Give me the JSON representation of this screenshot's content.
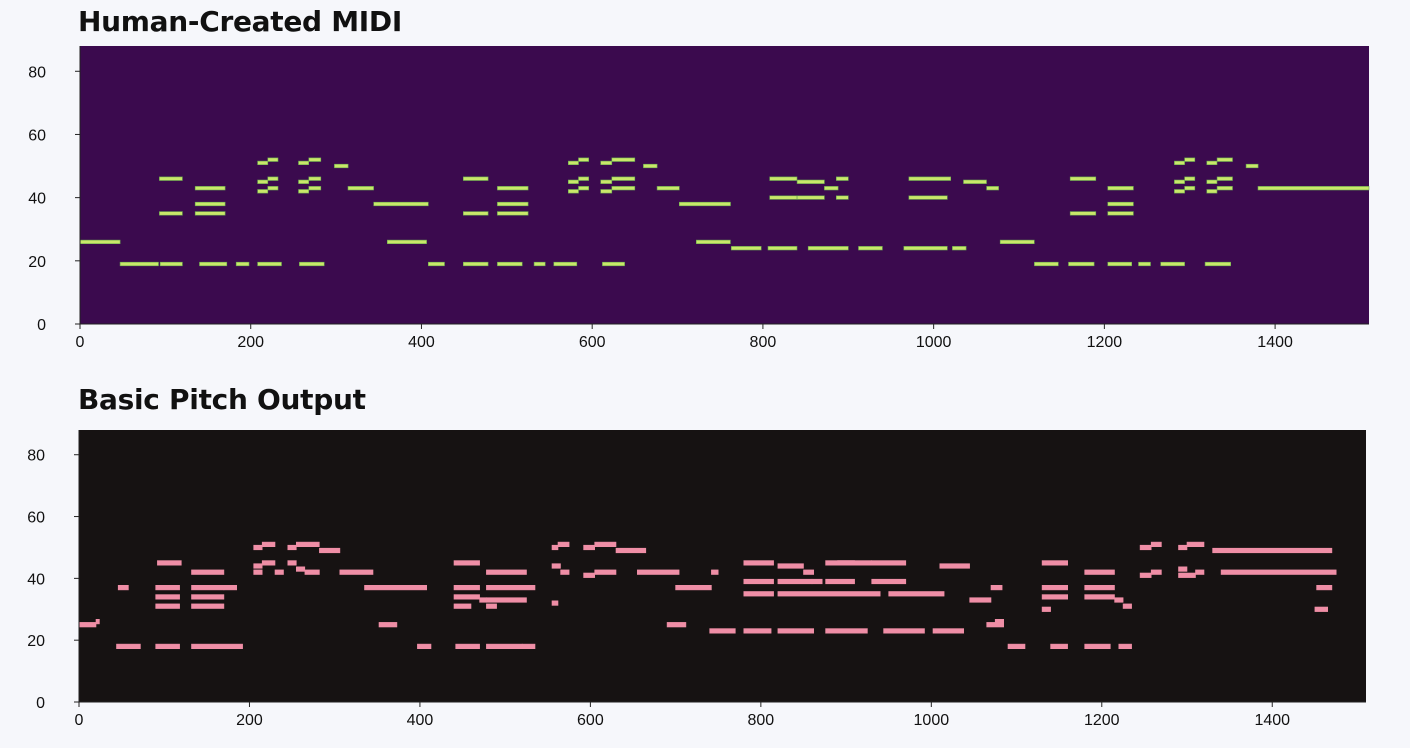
{
  "charts": [
    {
      "title": "Human-Created MIDI",
      "background": "#3b0a4e",
      "note_color": "#c9e86a",
      "note_edge": "#6aa84f"
    },
    {
      "title": "Basic Pitch Output",
      "background": "#161212",
      "note_color": "#ef8ea6",
      "note_edge": "#ef8ea6"
    }
  ],
  "chart_data": [
    {
      "type": "piano-roll",
      "title": "Human-Created MIDI",
      "xlim": [
        0,
        1510
      ],
      "ylim": [
        0,
        88
      ],
      "xticks": [
        0,
        200,
        400,
        600,
        800,
        1000,
        1200,
        1400
      ],
      "yticks": [
        0,
        20,
        40,
        60,
        80
      ],
      "grid": false,
      "notes": [
        [
          0,
          47,
          26
        ],
        [
          47,
          92,
          19
        ],
        [
          94,
          120,
          19
        ],
        [
          140,
          172,
          19
        ],
        [
          183,
          198,
          19
        ],
        [
          208,
          236,
          19
        ],
        [
          257,
          286,
          19
        ],
        [
          93,
          120,
          46
        ],
        [
          93,
          120,
          35
        ],
        [
          135,
          170,
          43
        ],
        [
          135,
          170,
          38
        ],
        [
          135,
          170,
          35
        ],
        [
          208,
          220,
          51
        ],
        [
          220,
          232,
          52
        ],
        [
          208,
          220,
          45
        ],
        [
          220,
          232,
          46
        ],
        [
          208,
          220,
          42
        ],
        [
          220,
          232,
          43
        ],
        [
          256,
          268,
          51
        ],
        [
          268,
          282,
          52
        ],
        [
          256,
          268,
          45
        ],
        [
          268,
          282,
          46
        ],
        [
          256,
          268,
          42
        ],
        [
          268,
          282,
          43
        ],
        [
          298,
          314,
          50
        ],
        [
          314,
          344,
          43
        ],
        [
          344,
          408,
          38
        ],
        [
          360,
          406,
          26
        ],
        [
          408,
          427,
          19
        ],
        [
          449,
          478,
          46
        ],
        [
          449,
          478,
          35
        ],
        [
          449,
          478,
          19
        ],
        [
          489,
          518,
          19
        ],
        [
          489,
          525,
          43
        ],
        [
          489,
          525,
          38
        ],
        [
          489,
          525,
          35
        ],
        [
          532,
          545,
          19
        ],
        [
          555,
          582,
          19
        ],
        [
          572,
          584,
          51
        ],
        [
          584,
          596,
          52
        ],
        [
          572,
          584,
          45
        ],
        [
          584,
          596,
          46
        ],
        [
          572,
          584,
          42
        ],
        [
          584,
          596,
          43
        ],
        [
          612,
          638,
          19
        ],
        [
          610,
          623,
          51
        ],
        [
          623,
          650,
          52
        ],
        [
          610,
          623,
          45
        ],
        [
          623,
          650,
          46
        ],
        [
          610,
          623,
          42
        ],
        [
          623,
          650,
          43
        ],
        [
          660,
          676,
          50
        ],
        [
          676,
          702,
          43
        ],
        [
          702,
          762,
          38
        ],
        [
          722,
          762,
          26
        ],
        [
          763,
          798,
          24
        ],
        [
          806,
          840,
          24
        ],
        [
          853,
          900,
          24
        ],
        [
          912,
          940,
          24
        ],
        [
          808,
          840,
          46
        ],
        [
          808,
          840,
          40
        ],
        [
          840,
          872,
          45
        ],
        [
          840,
          872,
          40
        ],
        [
          872,
          888,
          43
        ],
        [
          886,
          900,
          46
        ],
        [
          886,
          900,
          40
        ],
        [
          971,
          1020,
          46
        ],
        [
          971,
          1016,
          40
        ],
        [
          965,
          1016,
          24
        ],
        [
          1022,
          1038,
          24
        ],
        [
          1035,
          1062,
          45
        ],
        [
          1062,
          1076,
          43
        ],
        [
          1078,
          1118,
          26
        ],
        [
          1118,
          1146,
          19
        ],
        [
          1158,
          1188,
          19
        ],
        [
          1204,
          1232,
          19
        ],
        [
          1240,
          1254,
          19
        ],
        [
          1266,
          1294,
          19
        ],
        [
          1318,
          1348,
          19
        ],
        [
          1160,
          1190,
          46
        ],
        [
          1160,
          1190,
          35
        ],
        [
          1204,
          1234,
          43
        ],
        [
          1204,
          1234,
          38
        ],
        [
          1204,
          1234,
          35
        ],
        [
          1282,
          1294,
          51
        ],
        [
          1294,
          1306,
          52
        ],
        [
          1282,
          1294,
          45
        ],
        [
          1294,
          1306,
          46
        ],
        [
          1282,
          1294,
          42
        ],
        [
          1294,
          1306,
          43
        ],
        [
          1320,
          1332,
          51
        ],
        [
          1332,
          1350,
          52
        ],
        [
          1320,
          1332,
          45
        ],
        [
          1332,
          1350,
          46
        ],
        [
          1320,
          1332,
          42
        ],
        [
          1332,
          1350,
          43
        ],
        [
          1366,
          1380,
          50
        ],
        [
          1380,
          1510,
          43
        ]
      ]
    },
    {
      "type": "piano-roll",
      "title": "Basic Pitch Output",
      "xlim": [
        0,
        1510
      ],
      "ylim": [
        0,
        88
      ],
      "xticks": [
        0,
        200,
        400,
        600,
        800,
        1000,
        1200,
        1400
      ],
      "yticks": [
        0,
        20,
        40,
        60,
        80
      ],
      "grid": false,
      "notes": [
        [
          0,
          20,
          25
        ],
        [
          20,
          24,
          26
        ],
        [
          44,
          72,
          18
        ],
        [
          46,
          58,
          37
        ],
        [
          90,
          118,
          18
        ],
        [
          92,
          120,
          45
        ],
        [
          90,
          118,
          37
        ],
        [
          90,
          118,
          34
        ],
        [
          90,
          118,
          31
        ],
        [
          132,
          192,
          18
        ],
        [
          132,
          170,
          42
        ],
        [
          132,
          170,
          37
        ],
        [
          132,
          170,
          34
        ],
        [
          132,
          170,
          31
        ],
        [
          170,
          185,
          37
        ],
        [
          205,
          215,
          50
        ],
        [
          215,
          230,
          51
        ],
        [
          205,
          215,
          44
        ],
        [
          205,
          215,
          42
        ],
        [
          215,
          230,
          45
        ],
        [
          230,
          240,
          42
        ],
        [
          245,
          255,
          50
        ],
        [
          255,
          282,
          51
        ],
        [
          245,
          255,
          45
        ],
        [
          255,
          265,
          43
        ],
        [
          265,
          282,
          42
        ],
        [
          282,
          306,
          49
        ],
        [
          306,
          345,
          42
        ],
        [
          335,
          408,
          37
        ],
        [
          352,
          373,
          25
        ],
        [
          397,
          413,
          18
        ],
        [
          440,
          470,
          45
        ],
        [
          440,
          470,
          37
        ],
        [
          440,
          470,
          34
        ],
        [
          440,
          460,
          31
        ],
        [
          470,
          478,
          33
        ],
        [
          478,
          490,
          31
        ],
        [
          442,
          470,
          18
        ],
        [
          478,
          535,
          37
        ],
        [
          478,
          525,
          42
        ],
        [
          478,
          525,
          33
        ],
        [
          478,
          520,
          18
        ],
        [
          520,
          535,
          18
        ],
        [
          555,
          562,
          50
        ],
        [
          562,
          575,
          51
        ],
        [
          555,
          565,
          44
        ],
        [
          565,
          575,
          42
        ],
        [
          555,
          562,
          32
        ],
        [
          592,
          605,
          50
        ],
        [
          605,
          630,
          51
        ],
        [
          592,
          605,
          41
        ],
        [
          605,
          630,
          42
        ],
        [
          630,
          665,
          49
        ],
        [
          655,
          704,
          42
        ],
        [
          690,
          712,
          25
        ],
        [
          700,
          742,
          37
        ],
        [
          742,
          750,
          42
        ],
        [
          740,
          770,
          23
        ],
        [
          780,
          812,
          23
        ],
        [
          820,
          862,
          23
        ],
        [
          876,
          925,
          23
        ],
        [
          944,
          992,
          23
        ],
        [
          1002,
          1038,
          23
        ],
        [
          780,
          815,
          45
        ],
        [
          780,
          815,
          39
        ],
        [
          780,
          815,
          35
        ],
        [
          820,
          850,
          44
        ],
        [
          850,
          862,
          42
        ],
        [
          820,
          860,
          39
        ],
        [
          860,
          872,
          39
        ],
        [
          820,
          940,
          35
        ],
        [
          876,
          910,
          45
        ],
        [
          876,
          910,
          39
        ],
        [
          890,
          930,
          45
        ],
        [
          930,
          970,
          45
        ],
        [
          930,
          970,
          39
        ],
        [
          950,
          1015,
          35
        ],
        [
          1010,
          1045,
          44
        ],
        [
          1045,
          1070,
          33
        ],
        [
          1070,
          1083,
          37
        ],
        [
          1065,
          1085,
          25
        ],
        [
          1075,
          1085,
          26
        ],
        [
          1090,
          1110,
          18
        ],
        [
          1130,
          1160,
          45
        ],
        [
          1130,
          1160,
          37
        ],
        [
          1130,
          1160,
          34
        ],
        [
          1130,
          1140,
          30
        ],
        [
          1140,
          1160,
          18
        ],
        [
          1180,
          1210,
          18
        ],
        [
          1220,
          1235,
          18
        ],
        [
          1180,
          1215,
          42
        ],
        [
          1180,
          1215,
          37
        ],
        [
          1180,
          1215,
          34
        ],
        [
          1215,
          1225,
          33
        ],
        [
          1225,
          1235,
          31
        ],
        [
          1245,
          1258,
          50
        ],
        [
          1258,
          1270,
          51
        ],
        [
          1245,
          1258,
          41
        ],
        [
          1258,
          1270,
          42
        ],
        [
          1290,
          1300,
          50
        ],
        [
          1300,
          1320,
          51
        ],
        [
          1290,
          1300,
          43
        ],
        [
          1290,
          1310,
          41
        ],
        [
          1310,
          1320,
          42
        ],
        [
          1330,
          1470,
          49
        ],
        [
          1340,
          1475,
          42
        ],
        [
          1452,
          1470,
          37
        ],
        [
          1450,
          1465,
          30
        ]
      ]
    }
  ]
}
